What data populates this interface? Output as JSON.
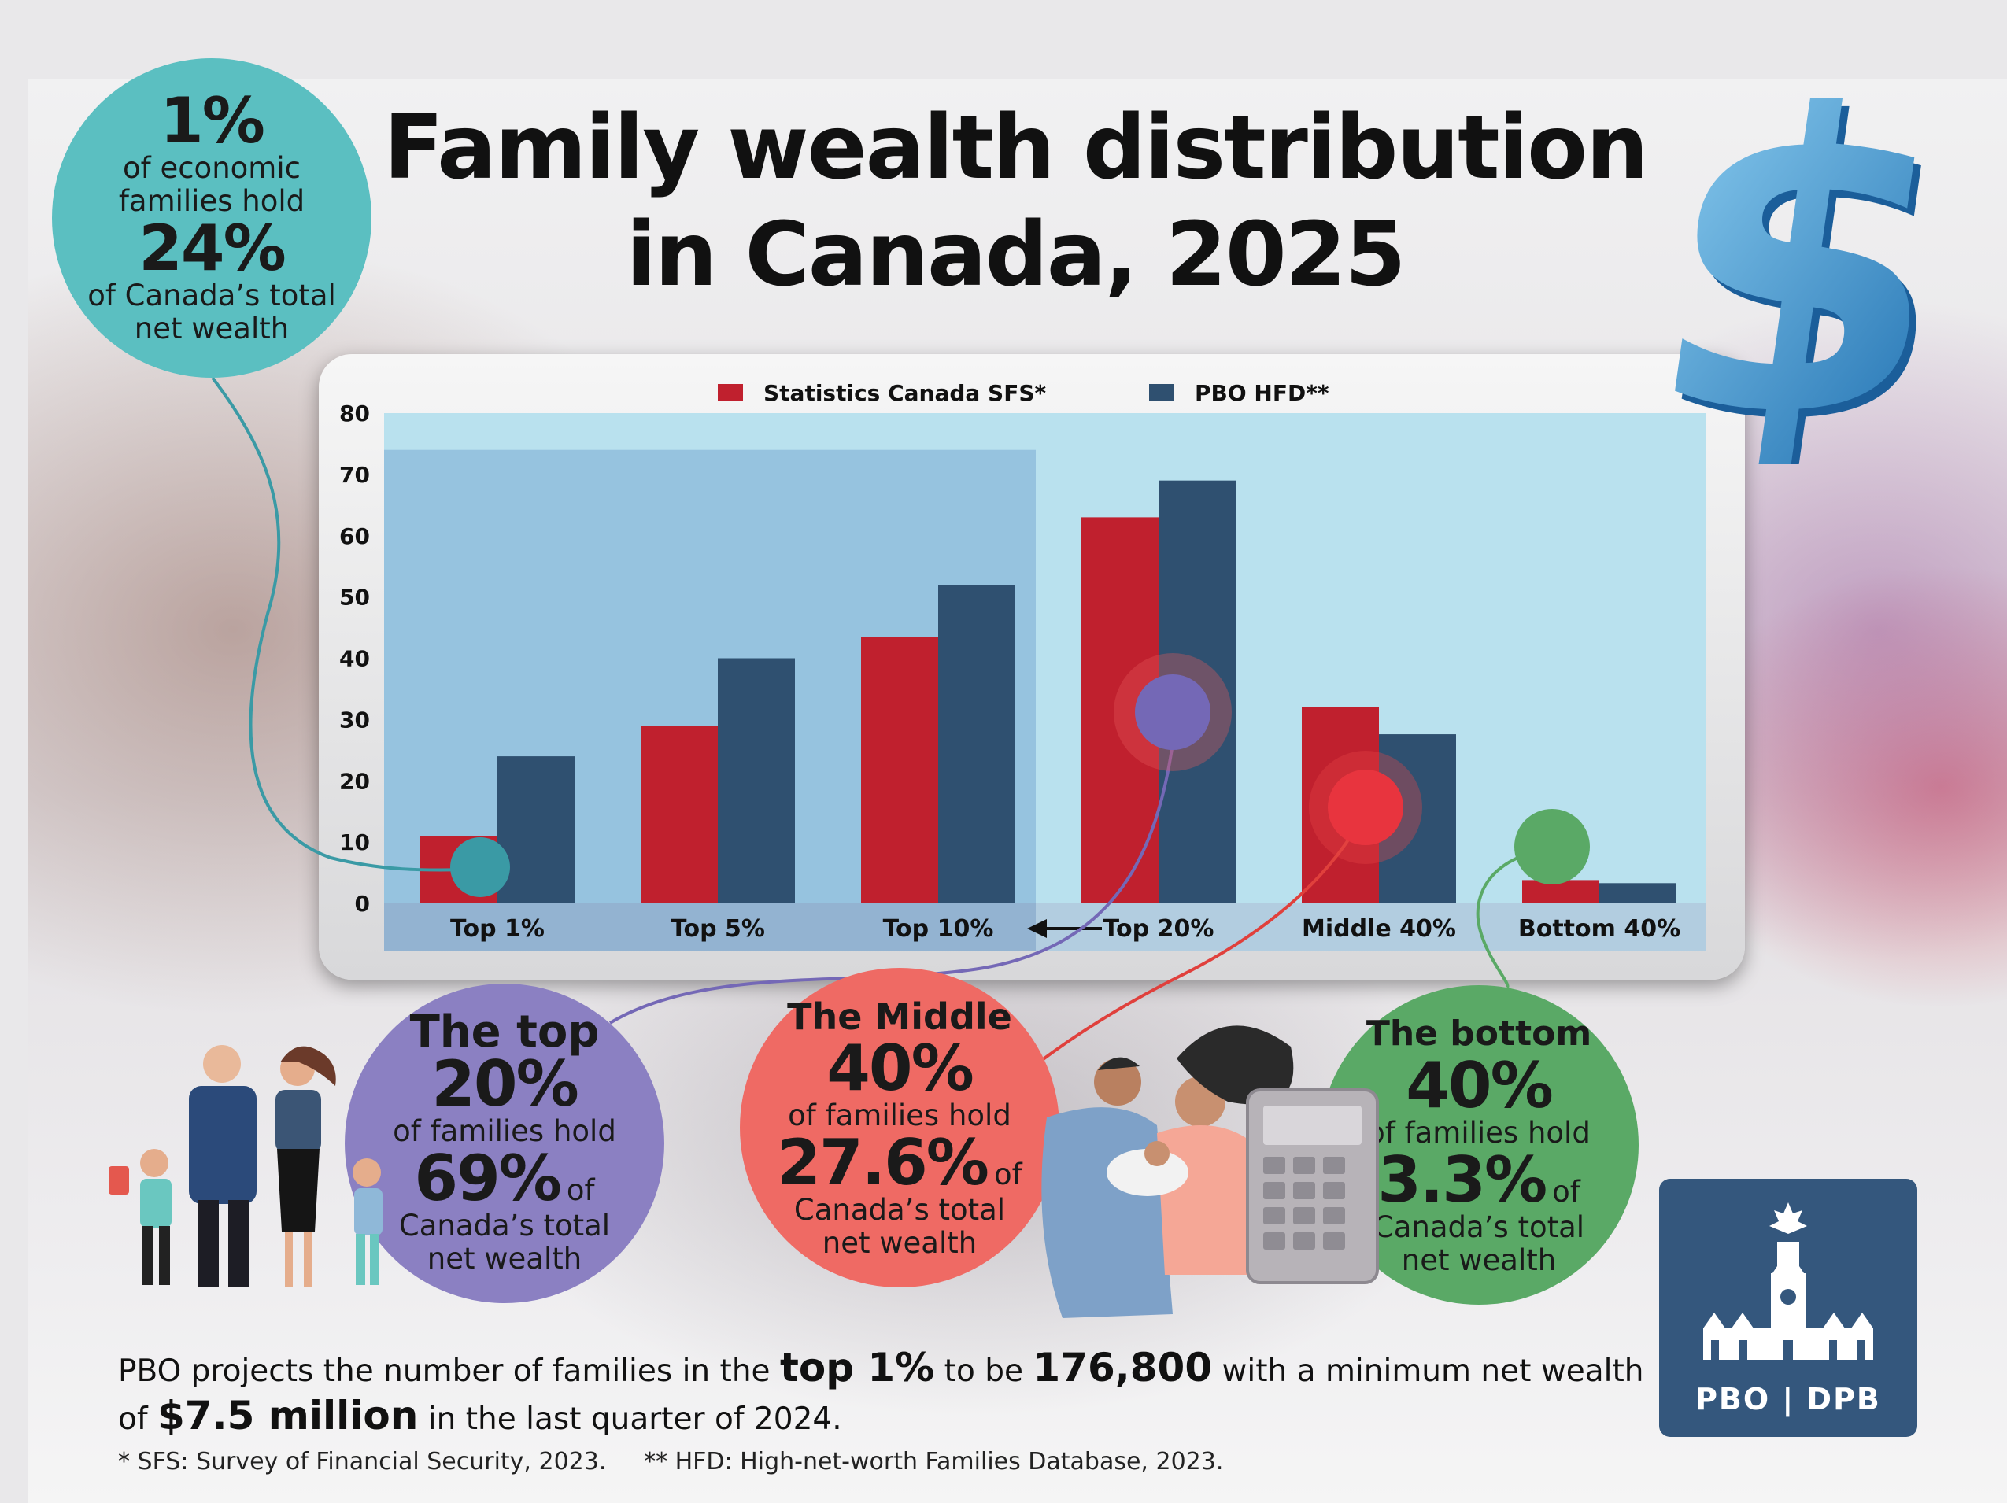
{
  "title_line1": "Family wealth distribution",
  "title_line2": "in Canada, 2025",
  "callouts": {
    "top1": {
      "big1": "1%",
      "t1": "of economic",
      "t2": "families hold",
      "big2": "24%",
      "t3": "of Canada’s total",
      "t4": "net wealth"
    },
    "top20": {
      "h1": "The top",
      "big1": "20%",
      "t1": "of families hold",
      "big2": "69%",
      "of": "of",
      "t2": "Canada’s total",
      "t3": "net wealth"
    },
    "middle40": {
      "h1": "The Middle",
      "big1": "40%",
      "t1": "of families hold",
      "big2": "27.6%",
      "of": "of",
      "t2": "Canada’s total",
      "t3": "net wealth"
    },
    "bottom40": {
      "h1": "The bottom",
      "big1": "40%",
      "t1": "of families hold",
      "big2": "3.3%",
      "of": "of",
      "t2": "Canada’s total",
      "t3": "net wealth"
    }
  },
  "bottom_text": {
    "p1": "PBO projects the number of families in the ",
    "b1": "top 1%",
    "p2": " to be ",
    "b2": "176,800",
    "p3": " with a minimum net wealth",
    "p4": "of ",
    "b3": "$7.5 million",
    "p5": " in the last quarter of 2024."
  },
  "footnotes": {
    "sfs": "* SFS: Survey of Financial Security, 2023.",
    "hfd": "** HFD: High-net-worth Families Database, 2023."
  },
  "logo": {
    "text": "PBO | DPB"
  },
  "colors": {
    "sfs": "#c0202e",
    "hfd": "#2f5070",
    "plot_bg": "#b9e1ee",
    "highlight": "#8fbddc",
    "teal": "#5bbfc1",
    "purple": "#8b80c2",
    "red": "#ef6a64",
    "green": "#5aa966"
  },
  "chart_data": {
    "type": "bar",
    "categories": [
      "Top 1%",
      "Top 5%",
      "Top 10%",
      "Top 20%",
      "Middle 40%",
      "Bottom 40%"
    ],
    "series": [
      {
        "name": "Statistics Canada SFS*",
        "values": [
          11,
          29,
          43.5,
          63,
          32,
          3.8
        ]
      },
      {
        "name": "PBO HFD**",
        "values": [
          24,
          40,
          52,
          69,
          27.6,
          3.3
        ]
      }
    ],
    "ylim": [
      0,
      80
    ],
    "yticks": [
      0,
      10,
      20,
      30,
      40,
      50,
      60,
      70,
      80
    ],
    "legend": "top",
    "grid": false
  }
}
